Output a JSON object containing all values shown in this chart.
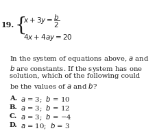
{
  "bg_color": "#ffffff",
  "text_color": "#1a1a1a",
  "question_num": "19.",
  "eq1_latex": "$x+3y=\\dfrac{b}{2}$",
  "eq2_latex": "$4x+4ay=20$",
  "brace_char": "{",
  "body_lines": [
    "In the system of equations above, $a$ and",
    "$b$ are constants. If the system has one",
    "solution, which of the following could",
    "be the values of $a$ and $b$?"
  ],
  "choice_labels": [
    "A.",
    "B.",
    "C.",
    "D."
  ],
  "choice_bodies": [
    "$a$ = 3;  $b$ = 10",
    "$a$ = 3;  $b$ = 12",
    "$a$ = 3;  $b$ = −4",
    "$a$ = 10;  $b$ = 3"
  ],
  "fs_eq": 7.5,
  "fs_body": 7.2,
  "fs_choice": 7.2,
  "fs_num": 8.0,
  "fs_brace": 20
}
